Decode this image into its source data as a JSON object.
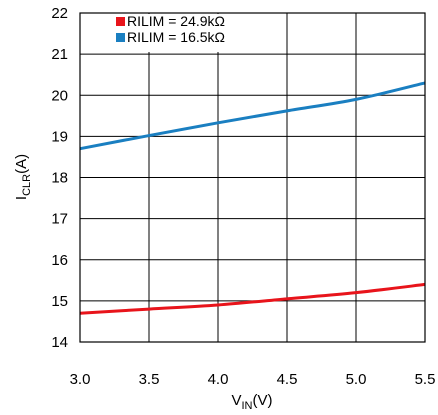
{
  "chart_data": {
    "type": "line",
    "x": [
      3.0,
      3.5,
      4.0,
      4.5,
      5.0,
      5.5
    ],
    "xlim": [
      3.0,
      5.5
    ],
    "ylim": [
      14,
      22
    ],
    "x_ticks": [
      "3.0",
      "3.5",
      "4.0",
      "4.5",
      "5.0",
      "5.5"
    ],
    "y_ticks": [
      "14",
      "15",
      "16",
      "17",
      "18",
      "19",
      "20",
      "21",
      "22"
    ],
    "xlabel": {
      "main": "V",
      "sub": "IN",
      "unit": "(V)"
    },
    "ylabel": {
      "main": "I",
      "sub": "CLR",
      "unit": "(A)"
    },
    "grid": true,
    "legend_position": "top-left",
    "series": [
      {
        "name": "RILIM = 24.9kΩ",
        "color": "#e8141b",
        "values": [
          14.7,
          14.8,
          14.9,
          15.05,
          15.2,
          15.4
        ]
      },
      {
        "name": "RILIM = 16.5kΩ",
        "color": "#1a7fc1",
        "values": [
          18.7,
          19.02,
          19.33,
          19.62,
          19.9,
          20.3
        ]
      }
    ]
  }
}
